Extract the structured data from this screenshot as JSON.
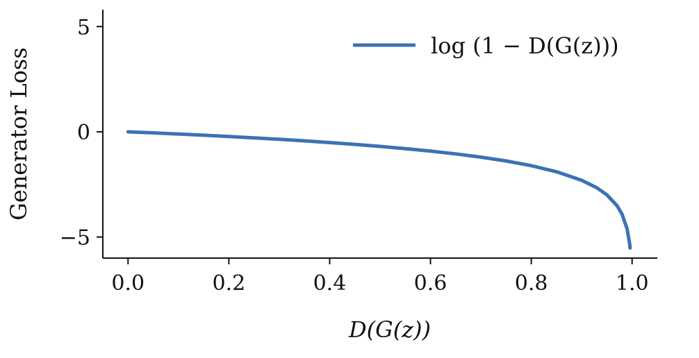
{
  "chart_data": {
    "type": "line",
    "xlabel": "D(G(z))",
    "ylabel": "Generator Loss",
    "xlim": [
      -0.05,
      1.05
    ],
    "ylim": [
      -6,
      5.8
    ],
    "xticks": [
      0.0,
      0.2,
      0.4,
      0.6,
      0.8,
      1.0
    ],
    "xtick_labels": [
      "0.0",
      "0.2",
      "0.4",
      "0.6",
      "0.8",
      "1.0"
    ],
    "yticks": [
      -5,
      0,
      5
    ],
    "ytick_labels": [
      "−5",
      "0",
      "5"
    ],
    "grid": false,
    "legend": {
      "placement": "top-right",
      "entries": [
        "log (1 − D(G(z)))"
      ]
    },
    "series": [
      {
        "name": "log (1 − D(G(z)))",
        "color": "#3b73b3",
        "x": [
          0.0,
          0.05,
          0.1,
          0.15,
          0.2,
          0.25,
          0.3,
          0.35,
          0.4,
          0.45,
          0.5,
          0.55,
          0.6,
          0.65,
          0.7,
          0.75,
          0.8,
          0.85,
          0.9,
          0.93,
          0.95,
          0.97,
          0.98,
          0.99,
          0.995,
          0.996
        ],
        "y": [
          0.0,
          -0.051,
          -0.105,
          -0.163,
          -0.223,
          -0.288,
          -0.357,
          -0.431,
          -0.511,
          -0.598,
          -0.693,
          -0.799,
          -0.916,
          -1.05,
          -1.204,
          -1.386,
          -1.609,
          -1.897,
          -2.303,
          -2.659,
          -2.996,
          -3.507,
          -3.912,
          -4.605,
          -5.298,
          -5.52
        ]
      }
    ]
  }
}
